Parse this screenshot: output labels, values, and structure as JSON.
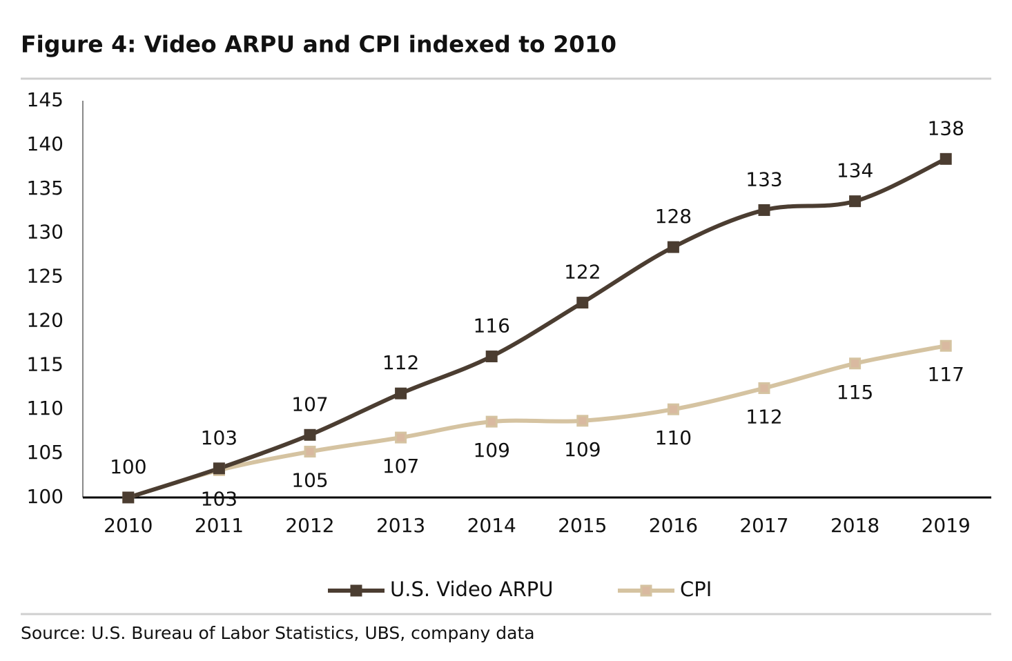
{
  "chart_data": {
    "type": "line",
    "title": "Figure 4: Video ARPU and CPI indexed to 2010",
    "source": "Source:  U.S. Bureau of Labor Statistics, UBS, company data",
    "categories": [
      "2010",
      "2011",
      "2012",
      "2013",
      "2014",
      "2015",
      "2016",
      "2017",
      "2018",
      "2019"
    ],
    "series": [
      {
        "name": "U.S. Video ARPU",
        "color": "#4b3d31",
        "values": [
          100,
          103.3,
          107.1,
          111.8,
          116.0,
          122.1,
          128.4,
          132.6,
          133.6,
          138.4
        ],
        "value_labels": [
          "100",
          "103",
          "107",
          "112",
          "116",
          "122",
          "128",
          "133",
          "134",
          "138"
        ]
      },
      {
        "name": "CPI",
        "color": "#d5c3a1",
        "values": [
          100,
          103.1,
          105.2,
          106.8,
          108.6,
          108.7,
          110.0,
          112.4,
          115.2,
          117.2
        ],
        "value_labels": [
          null,
          "103",
          "105",
          "107",
          "109",
          "109",
          "110",
          "112",
          "115",
          "117"
        ]
      }
    ],
    "ylim": [
      100,
      145
    ],
    "yticks": [
      100,
      105,
      110,
      115,
      120,
      125,
      130,
      135,
      140,
      145
    ],
    "grid": false
  }
}
